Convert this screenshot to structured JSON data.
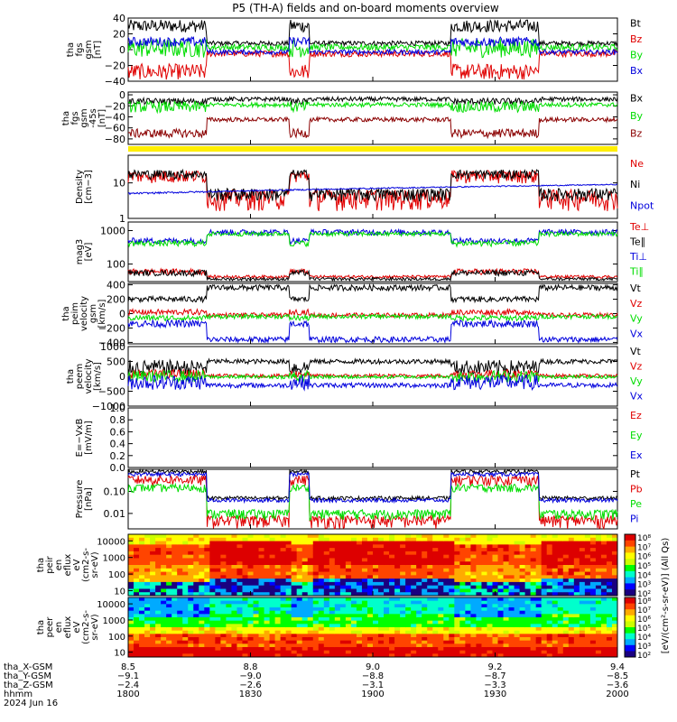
{
  "title": "P5 (TH-A) fields and on-board moments overview",
  "colors": {
    "black": "#000000",
    "red": "#e00000",
    "green": "#00dd00",
    "blue": "#0000dd",
    "yellow": "#ffee00",
    "darkred": "#8b0000"
  },
  "chart_data": [
    {
      "type": "line",
      "id": "fgs_gsm",
      "ylabel": [
        "tha",
        "fgs",
        "gsm",
        "[nT]"
      ],
      "ylim": [
        -40,
        40
      ],
      "yticks": [
        "40",
        "20",
        "0",
        "−20",
        "−40"
      ],
      "yticklabels_at": [
        40,
        20,
        0,
        -20,
        -40
      ],
      "legend": [
        {
          "label": "Bt",
          "color": "black"
        },
        {
          "label": "Bz",
          "color": "red"
        },
        {
          "label": "By",
          "color": "green"
        },
        {
          "label": "Bx",
          "color": "blue"
        }
      ]
    },
    {
      "type": "line",
      "id": "fgs_gse",
      "ylabel": [
        "tha",
        "fgs",
        "gsm",
        "-45s",
        "[nT]"
      ],
      "ylim": [
        -90,
        5
      ],
      "yticks": [
        "0",
        "−20",
        "−40",
        "−60",
        "−80"
      ],
      "yticklabels_at": [
        0,
        -20,
        -40,
        -60,
        -80
      ],
      "legend": [
        {
          "label": "Bx",
          "color": "black"
        },
        {
          "label": "By",
          "color": "green"
        },
        {
          "label": "Bz",
          "color": "darkred"
        }
      ]
    },
    {
      "type": "bar",
      "id": "flag_bar",
      "color": "yellow"
    },
    {
      "type": "line",
      "id": "density",
      "ylabel": [
        "Density",
        "[cm−3]"
      ],
      "scale": "log",
      "ylim": [
        1,
        60
      ],
      "yticks": [
        "10",
        "1"
      ],
      "yticklabels_at": [
        10,
        1
      ],
      "legend": [
        {
          "label": "Ne",
          "color": "red"
        },
        {
          "label": "Ni",
          "color": "black"
        },
        {
          "label": "Npot",
          "color": "blue"
        }
      ]
    },
    {
      "type": "line",
      "id": "temperature",
      "ylabel": [
        "mag3",
        "[eV]"
      ],
      "scale": "log",
      "ylim": [
        30,
        1800
      ],
      "yticks": [
        "1000",
        "100"
      ],
      "yticklabels_at": [
        1000,
        100
      ],
      "legend": [
        {
          "label": "Te⊥",
          "color": "red"
        },
        {
          "label": "Te∥",
          "color": "black"
        },
        {
          "label": "Ti⊥",
          "color": "blue"
        },
        {
          "label": "Ti∥",
          "color": "green"
        }
      ]
    },
    {
      "type": "line",
      "id": "peim_velocity",
      "ylabel": [
        "tha",
        "peim",
        "velocity",
        "gsm",
        "[km/s]"
      ],
      "ylim": [
        -420,
        420
      ],
      "yticks": [
        "400",
        "200",
        "0",
        "−200",
        "−400"
      ],
      "yticklabels_at": [
        400,
        200,
        0,
        -200,
        -400
      ],
      "legend": [
        {
          "label": "Vt",
          "color": "black"
        },
        {
          "label": "Vz",
          "color": "red"
        },
        {
          "label": "Vy",
          "color": "green"
        },
        {
          "label": "Vx",
          "color": "blue"
        }
      ]
    },
    {
      "type": "line",
      "id": "peem_velocity",
      "ylabel": [
        "tha",
        "peem",
        "velocity",
        "[km/s]"
      ],
      "ylim": [
        -1000,
        1000
      ],
      "yticks": [
        "1000",
        "500",
        "0",
        "−500",
        "−1000"
      ],
      "yticklabels_at": [
        1000,
        500,
        0,
        -500,
        -1000
      ],
      "legend": [
        {
          "label": "Vt",
          "color": "black"
        },
        {
          "label": "Vz",
          "color": "red"
        },
        {
          "label": "Vy",
          "color": "green"
        },
        {
          "label": "Vx",
          "color": "blue"
        }
      ]
    },
    {
      "type": "line",
      "id": "efield",
      "ylabel": [
        "E=−VxB",
        "[mV/m]"
      ],
      "ylim": [
        0,
        1
      ],
      "yticks": [
        "1.0",
        "0.8",
        "0.6",
        "0.4",
        "0.2",
        "0.0"
      ],
      "yticklabels_at": [
        1,
        0.8,
        0.6,
        0.4,
        0.2,
        0
      ],
      "legend": [
        {
          "label": "Ez",
          "color": "red"
        },
        {
          "label": "Ey",
          "color": "green"
        },
        {
          "label": "Ex",
          "color": "blue"
        }
      ]
    },
    {
      "type": "line",
      "id": "pressure",
      "ylabel": [
        "Pressure",
        "[nPa]"
      ],
      "scale": "log",
      "ylim": [
        0.002,
        1
      ],
      "yticks": [
        "0.10",
        "0.01"
      ],
      "yticklabels_at": [
        0.1,
        0.01
      ],
      "legend": [
        {
          "label": "Pt",
          "color": "black"
        },
        {
          "label": "Pb",
          "color": "red"
        },
        {
          "label": "Pe",
          "color": "green"
        },
        {
          "label": "Pi",
          "color": "blue"
        }
      ]
    },
    {
      "type": "heatmap",
      "id": "peir_spec",
      "ylabel": [
        "tha",
        "peir",
        "en",
        "eflux",
        "eV",
        "(cm2-s-",
        "sr-eV)"
      ],
      "scale": "log",
      "ylim": [
        5,
        25000
      ],
      "yticks": [
        "10000",
        "1000",
        "100",
        "10"
      ],
      "yticklabels_at": [
        10000,
        1000,
        100,
        10
      ]
    },
    {
      "type": "heatmap",
      "id": "peer_spec",
      "ylabel": [
        "tha",
        "peer",
        "en",
        "eflux",
        "eV",
        "(cm2-s-",
        "sr-eV)"
      ],
      "scale": "log",
      "ylim": [
        5,
        25000
      ],
      "yticks": [
        "10000",
        "1000",
        "100",
        "10"
      ],
      "yticklabels_at": [
        10000,
        1000,
        100,
        10
      ]
    }
  ],
  "colorbar": {
    "label": "[eV/(cm²-s-sr-eV)] (All Qs)",
    "ticks": [
      "10⁸",
      "10⁷",
      "10⁶",
      "10⁵",
      "10⁴",
      "10³",
      "10²"
    ],
    "ticks_lower": [
      "10⁸",
      "10⁷",
      "10⁶",
      "10⁵",
      "10⁴",
      "10³",
      "10²"
    ]
  },
  "xaxis": {
    "ticks": [
      8.5,
      8.8,
      9.0,
      9.2,
      9.4
    ],
    "rows": [
      {
        "label": "tha_X-GSM",
        "values": [
          "8.5",
          "8.8",
          "9.0",
          "9.2",
          "9.4"
        ]
      },
      {
        "label": "tha_Y-GSM",
        "values": [
          "−9.1",
          "−9.0",
          "−8.8",
          "−8.7",
          "−8.5"
        ]
      },
      {
        "label": "tha_Z-GSM",
        "values": [
          "−2.4",
          "−2.6",
          "−3.1",
          "−3.3",
          "−3.6"
        ]
      },
      {
        "label": "hhmm",
        "values": [
          "1800",
          "1830",
          "1900",
          "1930",
          "2000"
        ]
      },
      {
        "label": "2024 Jun 16",
        "values": []
      }
    ]
  }
}
